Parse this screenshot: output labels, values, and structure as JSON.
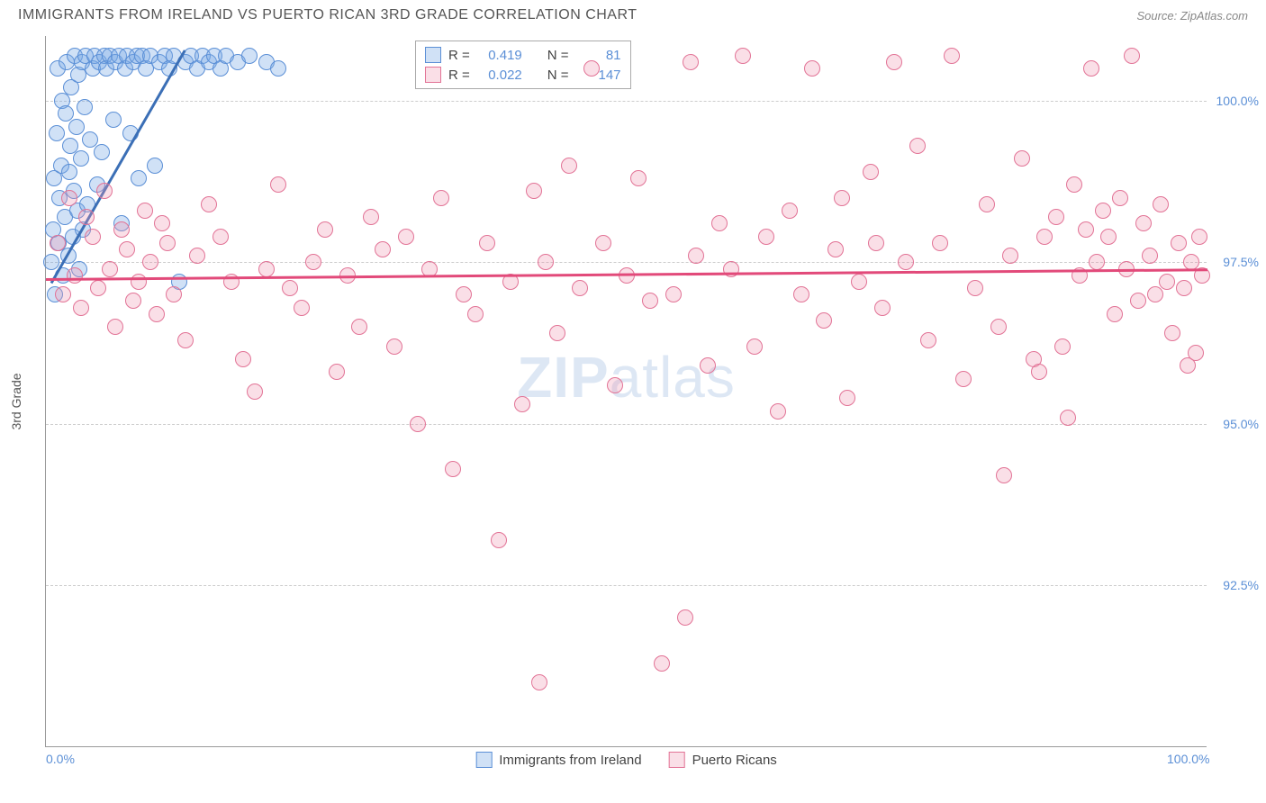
{
  "title": "IMMIGRANTS FROM IRELAND VS PUERTO RICAN 3RD GRADE CORRELATION CHART",
  "source": "Source: ZipAtlas.com",
  "ylabel": "3rd Grade",
  "watermark_bold": "ZIP",
  "watermark_rest": "atlas",
  "chart": {
    "type": "scatter",
    "xlim": [
      0,
      100
    ],
    "ylim": [
      90,
      101
    ],
    "xticks": [
      {
        "pos": 0,
        "label": "0.0%"
      },
      {
        "pos": 100,
        "label": "100.0%"
      }
    ],
    "yticks": [
      {
        "pos": 92.5,
        "label": "92.5%"
      },
      {
        "pos": 95.0,
        "label": "95.0%"
      },
      {
        "pos": 97.5,
        "label": "97.5%"
      },
      {
        "pos": 100.0,
        "label": "100.0%"
      }
    ],
    "background_color": "#ffffff",
    "grid_color": "#cccccc"
  },
  "series": [
    {
      "name": "Immigrants from Ireland",
      "fill_color": "rgba(120, 170, 230, 0.35)",
      "stroke_color": "#5b8fd6",
      "marker_size": 18,
      "R": "0.419",
      "N": "81",
      "trend": {
        "x1": 0.5,
        "y1": 97.2,
        "x2": 12,
        "y2": 100.8,
        "color": "#3b6fb6",
        "width": 3
      },
      "points": [
        [
          0.5,
          97.5
        ],
        [
          0.6,
          98.0
        ],
        [
          0.7,
          98.8
        ],
        [
          0.8,
          97.0
        ],
        [
          0.9,
          99.5
        ],
        [
          1.0,
          100.5
        ],
        [
          1.1,
          97.8
        ],
        [
          1.2,
          98.5
        ],
        [
          1.3,
          99.0
        ],
        [
          1.4,
          100.0
        ],
        [
          1.5,
          97.3
        ],
        [
          1.6,
          98.2
        ],
        [
          1.7,
          99.8
        ],
        [
          1.8,
          100.6
        ],
        [
          1.9,
          97.6
        ],
        [
          2.0,
          98.9
        ],
        [
          2.1,
          99.3
        ],
        [
          2.2,
          100.2
        ],
        [
          2.3,
          97.9
        ],
        [
          2.4,
          98.6
        ],
        [
          2.5,
          100.7
        ],
        [
          2.6,
          99.6
        ],
        [
          2.7,
          98.3
        ],
        [
          2.8,
          100.4
        ],
        [
          2.9,
          97.4
        ],
        [
          3.0,
          99.1
        ],
        [
          3.1,
          100.6
        ],
        [
          3.2,
          98.0
        ],
        [
          3.3,
          99.9
        ],
        [
          3.4,
          100.7
        ],
        [
          3.6,
          98.4
        ],
        [
          3.8,
          99.4
        ],
        [
          4.0,
          100.5
        ],
        [
          4.2,
          100.7
        ],
        [
          4.4,
          98.7
        ],
        [
          4.6,
          100.6
        ],
        [
          4.8,
          99.2
        ],
        [
          5.0,
          100.7
        ],
        [
          5.2,
          100.5
        ],
        [
          5.5,
          100.7
        ],
        [
          5.8,
          99.7
        ],
        [
          6.0,
          100.6
        ],
        [
          6.3,
          100.7
        ],
        [
          6.5,
          98.1
        ],
        [
          6.8,
          100.5
        ],
        [
          7.0,
          100.7
        ],
        [
          7.3,
          99.5
        ],
        [
          7.5,
          100.6
        ],
        [
          7.8,
          100.7
        ],
        [
          8.0,
          98.8
        ],
        [
          8.3,
          100.7
        ],
        [
          8.6,
          100.5
        ],
        [
          9.0,
          100.7
        ],
        [
          9.4,
          99.0
        ],
        [
          9.8,
          100.6
        ],
        [
          10.2,
          100.7
        ],
        [
          10.6,
          100.5
        ],
        [
          11.0,
          100.7
        ],
        [
          11.5,
          97.2
        ],
        [
          12.0,
          100.6
        ],
        [
          12.5,
          100.7
        ],
        [
          13.0,
          100.5
        ],
        [
          13.5,
          100.7
        ],
        [
          14.0,
          100.6
        ],
        [
          14.5,
          100.7
        ],
        [
          15.0,
          100.5
        ],
        [
          15.5,
          100.7
        ],
        [
          16.5,
          100.6
        ],
        [
          17.5,
          100.7
        ],
        [
          19.0,
          100.6
        ],
        [
          20.0,
          100.5
        ]
      ]
    },
    {
      "name": "Puerto Ricans",
      "fill_color": "rgba(240, 150, 175, 0.30)",
      "stroke_color": "#e27396",
      "marker_size": 18,
      "R": "0.022",
      "N": "147",
      "trend": {
        "x1": 0,
        "y1": 97.25,
        "x2": 100,
        "y2": 97.4,
        "color": "#e24a7a",
        "width": 3
      },
      "points": [
        [
          1,
          97.8
        ],
        [
          1.5,
          97.0
        ],
        [
          2,
          98.5
        ],
        [
          2.5,
          97.3
        ],
        [
          3,
          96.8
        ],
        [
          3.5,
          98.2
        ],
        [
          4,
          97.9
        ],
        [
          4.5,
          97.1
        ],
        [
          5,
          98.6
        ],
        [
          5.5,
          97.4
        ],
        [
          6,
          96.5
        ],
        [
          6.5,
          98.0
        ],
        [
          7,
          97.7
        ],
        [
          7.5,
          96.9
        ],
        [
          8,
          97.2
        ],
        [
          8.5,
          98.3
        ],
        [
          9,
          97.5
        ],
        [
          9.5,
          96.7
        ],
        [
          10,
          98.1
        ],
        [
          10.5,
          97.8
        ],
        [
          11,
          97.0
        ],
        [
          12,
          96.3
        ],
        [
          13,
          97.6
        ],
        [
          14,
          98.4
        ],
        [
          15,
          97.9
        ],
        [
          16,
          97.2
        ],
        [
          17,
          96.0
        ],
        [
          18,
          95.5
        ],
        [
          19,
          97.4
        ],
        [
          20,
          98.7
        ],
        [
          21,
          97.1
        ],
        [
          22,
          96.8
        ],
        [
          23,
          97.5
        ],
        [
          24,
          98.0
        ],
        [
          25,
          95.8
        ],
        [
          26,
          97.3
        ],
        [
          27,
          96.5
        ],
        [
          28,
          98.2
        ],
        [
          29,
          97.7
        ],
        [
          30,
          96.2
        ],
        [
          31,
          97.9
        ],
        [
          32,
          95.0
        ],
        [
          33,
          97.4
        ],
        [
          34,
          98.5
        ],
        [
          35,
          94.3
        ],
        [
          36,
          97.0
        ],
        [
          37,
          96.7
        ],
        [
          38,
          97.8
        ],
        [
          39,
          93.2
        ],
        [
          40,
          97.2
        ],
        [
          41,
          95.3
        ],
        [
          42,
          98.6
        ],
        [
          42.5,
          91.0
        ],
        [
          43,
          97.5
        ],
        [
          44,
          96.4
        ],
        [
          45,
          99.0
        ],
        [
          46,
          97.1
        ],
        [
          47,
          100.5
        ],
        [
          48,
          97.8
        ],
        [
          49,
          95.6
        ],
        [
          50,
          97.3
        ],
        [
          51,
          98.8
        ],
        [
          52,
          96.9
        ],
        [
          53,
          91.3
        ],
        [
          54,
          97.0
        ],
        [
          55,
          92.0
        ],
        [
          55.5,
          100.6
        ],
        [
          56,
          97.6
        ],
        [
          57,
          95.9
        ],
        [
          58,
          98.1
        ],
        [
          59,
          97.4
        ],
        [
          60,
          100.7
        ],
        [
          61,
          96.2
        ],
        [
          62,
          97.9
        ],
        [
          63,
          95.2
        ],
        [
          64,
          98.3
        ],
        [
          65,
          97.0
        ],
        [
          66,
          100.5
        ],
        [
          67,
          96.6
        ],
        [
          68,
          97.7
        ],
        [
          68.5,
          98.5
        ],
        [
          69,
          95.4
        ],
        [
          70,
          97.2
        ],
        [
          71,
          98.9
        ],
        [
          71.5,
          97.8
        ],
        [
          72,
          96.8
        ],
        [
          73,
          100.6
        ],
        [
          74,
          97.5
        ],
        [
          75,
          99.3
        ],
        [
          76,
          96.3
        ],
        [
          77,
          97.8
        ],
        [
          78,
          100.7
        ],
        [
          79,
          95.7
        ],
        [
          80,
          97.1
        ],
        [
          81,
          98.4
        ],
        [
          82,
          96.5
        ],
        [
          82.5,
          94.2
        ],
        [
          83,
          97.6
        ],
        [
          84,
          99.1
        ],
        [
          85,
          96.0
        ],
        [
          85.5,
          95.8
        ],
        [
          86,
          97.9
        ],
        [
          87,
          98.2
        ],
        [
          87.5,
          96.2
        ],
        [
          88,
          95.1
        ],
        [
          88.5,
          98.7
        ],
        [
          89,
          97.3
        ],
        [
          89.5,
          98.0
        ],
        [
          90,
          100.5
        ],
        [
          90.5,
          97.5
        ],
        [
          91,
          98.3
        ],
        [
          91.5,
          97.9
        ],
        [
          92,
          96.7
        ],
        [
          92.5,
          98.5
        ],
        [
          93,
          97.4
        ],
        [
          93.5,
          100.7
        ],
        [
          94,
          96.9
        ],
        [
          94.5,
          98.1
        ],
        [
          95,
          97.6
        ],
        [
          95.5,
          97.0
        ],
        [
          96,
          98.4
        ],
        [
          96.5,
          97.2
        ],
        [
          97,
          96.4
        ],
        [
          97.5,
          97.8
        ],
        [
          98,
          97.1
        ],
        [
          98.3,
          95.9
        ],
        [
          98.6,
          97.5
        ],
        [
          99,
          96.1
        ],
        [
          99.3,
          97.9
        ],
        [
          99.5,
          97.3
        ]
      ]
    }
  ],
  "legend_labels": {
    "R": "R =",
    "N": "N ="
  }
}
